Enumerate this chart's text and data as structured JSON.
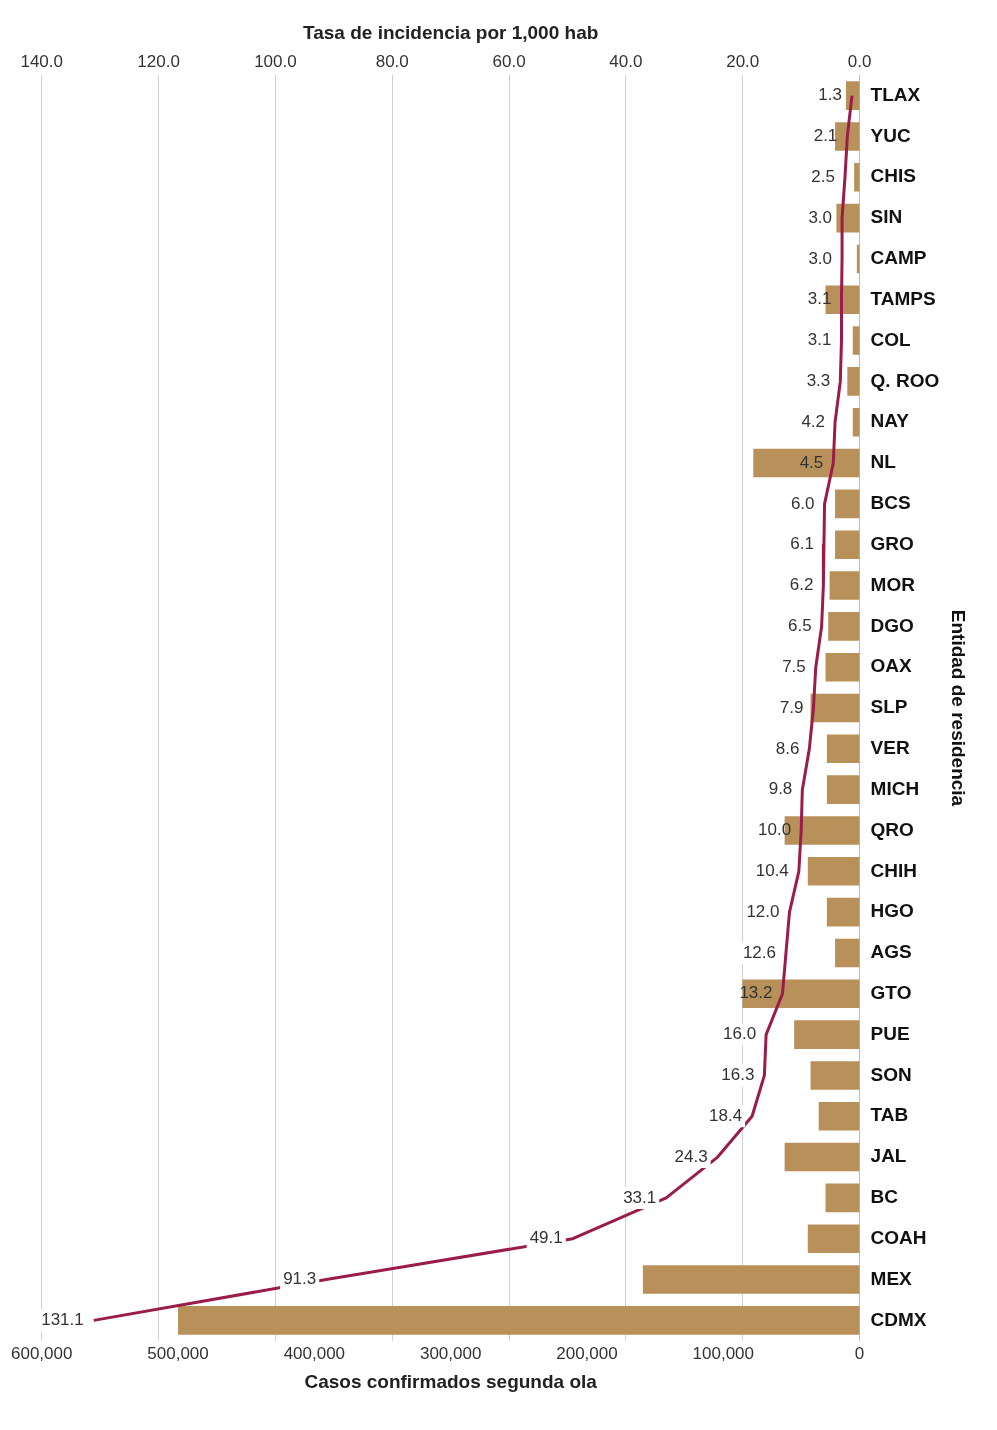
{
  "chart_data": {
    "type": "bar",
    "orientation": "horizontal",
    "xlabel": "Casos confirmados segunda ola",
    "x2label": "Tasa de incidencia por 1,000 hab",
    "ylabel": "Entidad de residencia",
    "categories": [
      "TLAX",
      "YUC",
      "CHIS",
      "SIN",
      "CAMP",
      "TAMPS",
      "COL",
      "Q. ROO",
      "NAY",
      "NL",
      "BCS",
      "GRO",
      "MOR",
      "DGO",
      "OAX",
      "SLP",
      "VER",
      "MICH",
      "QRO",
      "CHIH",
      "HGO",
      "AGS",
      "GTO",
      "PUE",
      "SON",
      "TAB",
      "JAL",
      "BC",
      "COAH",
      "MEX",
      "CDMX"
    ],
    "series": [
      {
        "color": "#b8915a",
        "values": [
          10000,
          18000,
          4000,
          17000,
          2000,
          25000,
          5000,
          9000,
          5000,
          78000,
          18000,
          18000,
          22000,
          23000,
          25000,
          36000,
          24000,
          24000,
          55000,
          38000,
          24000,
          18000,
          86000,
          48000,
          36000,
          30000,
          55000,
          25000,
          38000,
          159000,
          500000
        ]
      },
      {
        "type": "line",
        "axis": "x2",
        "color": "#9b1b4a",
        "values": [
          1.3,
          2.1,
          2.5,
          3.0,
          3.0,
          3.1,
          3.1,
          3.3,
          4.2,
          4.5,
          6.0,
          6.1,
          6.2,
          6.5,
          7.5,
          7.9,
          8.6,
          9.8,
          10.0,
          10.4,
          12.0,
          12.6,
          13.2,
          16.0,
          16.3,
          18.4,
          24.3,
          33.1,
          49.1,
          91.3,
          131.1
        ],
        "value_labels": [
          "1.3",
          "2.1",
          "2.5",
          "3.0",
          "3.0",
          "3.1",
          "3.1",
          "3.3",
          "4.2",
          "4.5",
          "6.0",
          "6.1",
          "6.2",
          "6.5",
          "7.5",
          "7.9",
          "8.6",
          "9.8",
          "10.0",
          "10.4",
          "12.0",
          "12.6",
          "13.2",
          "16.0",
          "16.3",
          "18.4",
          "24.3",
          "33.1",
          "49.1",
          "91.3",
          "131.1"
        ]
      }
    ],
    "xlim": [
      600000,
      0
    ],
    "xticks": [
      {
        "value": 600000,
        "label": "600,000"
      },
      {
        "value": 500000,
        "label": "500,000"
      },
      {
        "value": 400000,
        "label": "400,000"
      },
      {
        "value": 300000,
        "label": "300,000"
      },
      {
        "value": 200000,
        "label": "200,000"
      },
      {
        "value": 100000,
        "label": "100,000"
      },
      0
    ],
    "x2lim": [
      140,
      0
    ],
    "x2ticks": [
      {
        "value": 140,
        "label": "140.0"
      },
      {
        "value": 120,
        "label": "120.0"
      },
      {
        "value": 100,
        "label": "100.0"
      },
      {
        "value": 80,
        "label": "80.0"
      },
      {
        "value": 60,
        "label": "60.0"
      },
      {
        "value": 40,
        "label": "40.0"
      },
      {
        "value": 20,
        "label": "20.0"
      },
      {
        "value": 0,
        "label": "0.0"
      }
    ],
    "grid": "x",
    "legend": false,
    "marker": "none",
    "line_style": "solid"
  }
}
